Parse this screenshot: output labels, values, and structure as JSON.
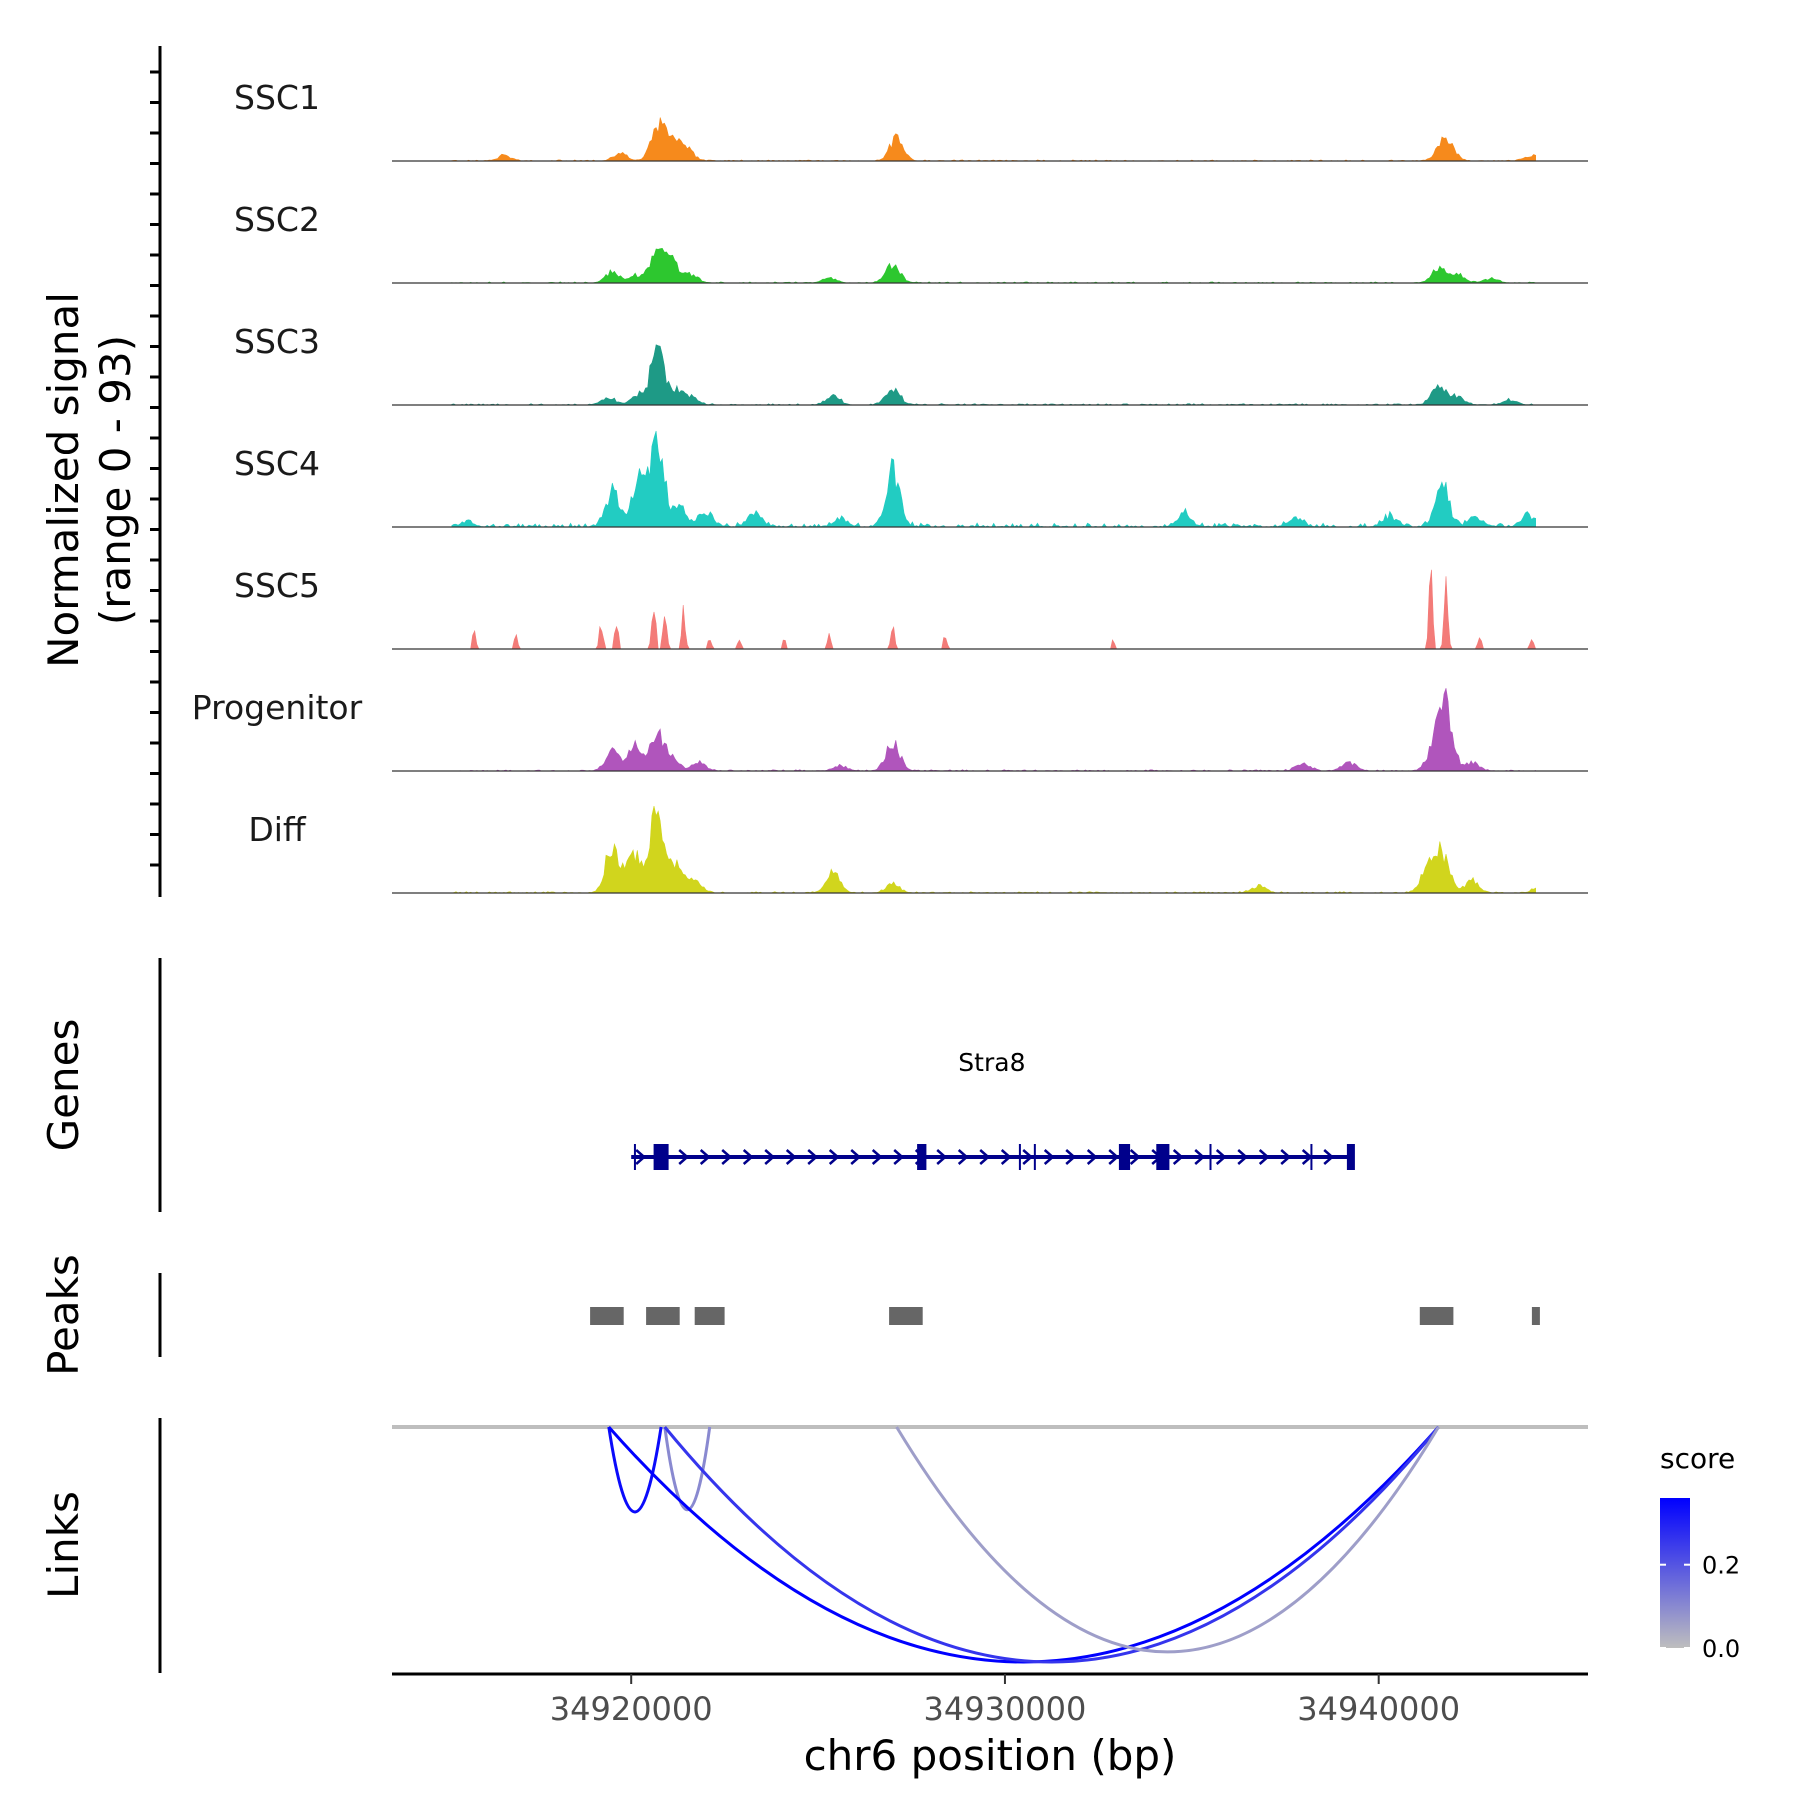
{
  "chart_data": {
    "type": "genome-coverage",
    "region": {
      "chrom": "chr6",
      "start": 34913600,
      "end": 34945600
    },
    "coverage_ylabel_line1": "Normalized signal",
    "coverage_ylabel_line2": "(range 0 - 93)",
    "ymax": 93,
    "tracks": [
      {
        "name": "SSC1",
        "color": "#F68A1C",
        "scale": 0.45,
        "noise": 0.05,
        "peaks": [
          [
            34920700,
            30
          ],
          [
            34920900,
            18
          ],
          [
            34921200,
            14
          ],
          [
            34921500,
            12
          ],
          [
            34919700,
            8
          ],
          [
            34927100,
            24
          ],
          [
            34941700,
            16
          ],
          [
            34941900,
            12
          ],
          [
            34944100,
            6
          ],
          [
            34916600,
            6
          ]
        ]
      },
      {
        "name": "SSC2",
        "color": "#2DC72F",
        "scale": 0.55,
        "noise": 0.05,
        "peaks": [
          [
            34920700,
            42
          ],
          [
            34921100,
            22
          ],
          [
            34921600,
            10
          ],
          [
            34919500,
            12
          ],
          [
            34920100,
            8
          ],
          [
            34927000,
            22
          ],
          [
            34925300,
            6
          ],
          [
            34941600,
            18
          ],
          [
            34942100,
            10
          ],
          [
            34943000,
            5
          ]
        ]
      },
      {
        "name": "SSC3",
        "color": "#1E9A86",
        "scale": 0.7,
        "noise": 0.06,
        "peaks": [
          [
            34920700,
            58
          ],
          [
            34920200,
            12
          ],
          [
            34921200,
            16
          ],
          [
            34921600,
            8
          ],
          [
            34919400,
            8
          ],
          [
            34927000,
            20
          ],
          [
            34925400,
            10
          ],
          [
            34941600,
            22
          ],
          [
            34942100,
            10
          ],
          [
            34943500,
            6
          ]
        ]
      },
      {
        "name": "SSC4",
        "color": "#22CCC2",
        "scale": 1.0,
        "noise": 0.18,
        "peaks": [
          [
            34920700,
            93
          ],
          [
            34920200,
            50
          ],
          [
            34919500,
            38
          ],
          [
            34921300,
            22
          ],
          [
            34922000,
            18
          ],
          [
            34923300,
            16
          ],
          [
            34927000,
            60
          ],
          [
            34925600,
            10
          ],
          [
            34934800,
            14
          ],
          [
            34937800,
            10
          ],
          [
            34940300,
            12
          ],
          [
            34941700,
            46
          ],
          [
            34942600,
            12
          ],
          [
            34944000,
            12
          ],
          [
            34915600,
            6
          ]
        ]
      },
      {
        "name": "SSC5",
        "color": "#F37B78",
        "scale": 0.95,
        "noise": 0.0,
        "sparse": true,
        "peaks": [
          [
            34915800,
            20
          ],
          [
            34916900,
            16
          ],
          [
            34919200,
            28
          ],
          [
            34919600,
            36
          ],
          [
            34920600,
            55
          ],
          [
            34920900,
            40
          ],
          [
            34921400,
            42
          ],
          [
            34922100,
            14
          ],
          [
            34922900,
            10
          ],
          [
            34924100,
            10
          ],
          [
            34925300,
            18
          ],
          [
            34927000,
            22
          ],
          [
            34928400,
            16
          ],
          [
            34932900,
            10
          ],
          [
            34941400,
            90
          ],
          [
            34941800,
            66
          ],
          [
            34942700,
            14
          ],
          [
            34944100,
            12
          ]
        ]
      },
      {
        "name": "Progenitor",
        "color": "#B055BC",
        "scale": 0.6,
        "noise": 0.06,
        "peaks": [
          [
            34920700,
            40
          ],
          [
            34920100,
            28
          ],
          [
            34919500,
            22
          ],
          [
            34921100,
            14
          ],
          [
            34921800,
            10
          ],
          [
            34927000,
            30
          ],
          [
            34925600,
            6
          ],
          [
            34938000,
            8
          ],
          [
            34939200,
            10
          ],
          [
            34941800,
            70
          ],
          [
            34941500,
            30
          ],
          [
            34942500,
            10
          ]
        ]
      },
      {
        "name": "Diff",
        "color": "#D1D51D",
        "scale": 0.8,
        "noise": 0.06,
        "peaks": [
          [
            34920700,
            93
          ],
          [
            34919500,
            55
          ],
          [
            34920100,
            45
          ],
          [
            34921200,
            28
          ],
          [
            34921700,
            14
          ],
          [
            34925400,
            24
          ],
          [
            34927000,
            10
          ],
          [
            34936800,
            8
          ],
          [
            34941700,
            46
          ],
          [
            34941300,
            26
          ],
          [
            34942500,
            14
          ],
          [
            34944300,
            6
          ]
        ]
      }
    ],
    "genes_title": "Genes",
    "gene": {
      "name": "Stra8",
      "strand": "+",
      "start": 34920000,
      "end": 34939300,
      "exons": [
        [
          34920600,
          34921000
        ],
        [
          34927650,
          34927900
        ],
        [
          34933050,
          34933350
        ],
        [
          34934050,
          34934400
        ],
        [
          34939150,
          34939300
        ]
      ],
      "minor_ticks": [
        34920100,
        34930400,
        34930800,
        34935500,
        34938200
      ]
    },
    "peaks_title": "Peaks",
    "peaks": [
      [
        34918900,
        34919800
      ],
      [
        34920400,
        34921300
      ],
      [
        34921700,
        34922500
      ],
      [
        34926900,
        34927800
      ],
      [
        34941100,
        34942000
      ],
      [
        34944100,
        34944300
      ]
    ],
    "links_title": "Links",
    "links": [
      {
        "start": 34919400,
        "end": 34920800,
        "score": 0.34
      },
      {
        "start": 34920900,
        "end": 34922100,
        "score": 0.1
      },
      {
        "start": 34919400,
        "end": 34941600,
        "score": 0.36
      },
      {
        "start": 34920900,
        "end": 34941600,
        "score": 0.26
      },
      {
        "start": 34927100,
        "end": 34941600,
        "score": 0.06
      }
    ],
    "xaxis": {
      "ticks": [
        "34920000",
        "34930000",
        "34940000"
      ],
      "title": "chr6 position (bp)"
    },
    "legend": {
      "title": "score",
      "labels": [
        "0.2",
        "0.0"
      ],
      "label_values": [
        0.2,
        0.0
      ],
      "min": 0.0,
      "max": 0.36,
      "color_low": "#BEBEBE",
      "color_high": "#0000FF"
    }
  }
}
